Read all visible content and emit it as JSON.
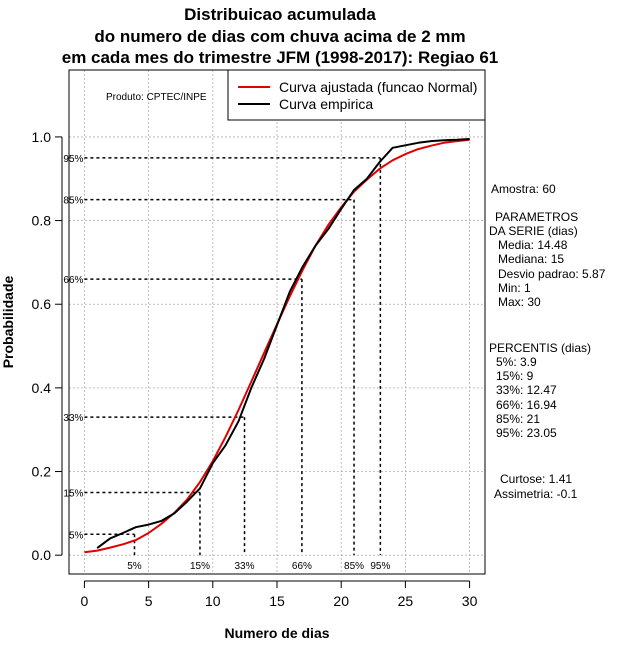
{
  "chart_data": {
    "type": "line",
    "title": [
      "Distribuicao acumulada",
      "do numero de dias com chuva acima de 2 mm",
      "em cada mes do trimestre JFM (1998-2017): Regiao 61"
    ],
    "xlabel": "Numero de dias",
    "ylabel": "Probabilidade",
    "xlim": [
      -1.2,
      31.2
    ],
    "ylim": [
      -0.045,
      1.16
    ],
    "xticks": [
      0,
      5,
      10,
      15,
      20,
      25,
      30
    ],
    "yticks": [
      0.0,
      0.2,
      0.4,
      0.6,
      0.8,
      1.0
    ],
    "xtick_labels": [
      "0",
      "5",
      "10",
      "15",
      "20",
      "25",
      "30"
    ],
    "ytick_labels": [
      "0.0",
      "0.2",
      "0.4",
      "0.6",
      "0.8",
      "1.0"
    ],
    "grid": true,
    "product_label": "Produto: CPTEC/INPE",
    "legend": {
      "position": "top-right",
      "entries": [
        {
          "label": "Curva ajustada (funcao Normal)",
          "color": "#e00000"
        },
        {
          "label": "Curva empirica",
          "color": "#000000"
        }
      ]
    },
    "series": [
      {
        "name": "Curva ajustada (funcao Normal)",
        "color": "#e00000",
        "x": [
          0,
          1,
          2,
          3,
          4,
          5,
          6,
          7,
          8,
          9,
          10,
          11,
          12,
          13,
          14,
          15,
          16,
          17,
          18,
          19,
          20,
          21,
          22,
          23,
          24,
          25,
          26,
          27,
          28,
          29,
          30
        ],
        "y": [
          0.007,
          0.011,
          0.018,
          0.026,
          0.036,
          0.053,
          0.075,
          0.101,
          0.133,
          0.175,
          0.225,
          0.283,
          0.347,
          0.415,
          0.484,
          0.552,
          0.619,
          0.682,
          0.74,
          0.79,
          0.832,
          0.869,
          0.898,
          0.924,
          0.944,
          0.959,
          0.971,
          0.979,
          0.986,
          0.99,
          0.993
        ]
      },
      {
        "name": "Curva empirica",
        "color": "#000000",
        "x": [
          1,
          2,
          3,
          4,
          5,
          6,
          7,
          8,
          9,
          10,
          11,
          12,
          13,
          14,
          15,
          16,
          17,
          18,
          19,
          20,
          21,
          22,
          23,
          24,
          25,
          26,
          27,
          28,
          29,
          30
        ],
        "y": [
          0.017,
          0.04,
          0.053,
          0.067,
          0.073,
          0.082,
          0.1,
          0.128,
          0.16,
          0.22,
          0.263,
          0.32,
          0.4,
          0.47,
          0.55,
          0.63,
          0.69,
          0.74,
          0.78,
          0.828,
          0.873,
          0.9,
          0.94,
          0.974,
          0.98,
          0.986,
          0.99,
          0.992,
          0.993,
          0.995
        ]
      }
    ],
    "percentile_markers": [
      {
        "label": "5%",
        "x": 3.9,
        "p": 0.05
      },
      {
        "label": "15%",
        "x": 9.0,
        "p": 0.15
      },
      {
        "label": "33%",
        "x": 12.47,
        "p": 0.33
      },
      {
        "label": "66%",
        "x": 16.94,
        "p": 0.66
      },
      {
        "label": "85%",
        "x": 21.0,
        "p": 0.85
      },
      {
        "label": "95%",
        "x": 23.05,
        "p": 0.95
      }
    ]
  },
  "side_panel": {
    "sample": "Amostra: 60",
    "params_title_1": "PARAMETROS",
    "params_title_2": "DA SERIE (dias)",
    "params": [
      "Media: 14.48",
      "Mediana: 15",
      "Desvio padrao: 5.87",
      "Min: 1",
      "Max: 30"
    ],
    "percentis_title": "PERCENTIS (dias)",
    "percentis": [
      "5%: 3.9",
      "15%: 9",
      "33%: 12.47",
      "66%: 16.94",
      "85%: 21",
      "95%: 23.05"
    ],
    "curtose": "Curtose: 1.41",
    "assimetria": "Assimetria: -0.1"
  }
}
